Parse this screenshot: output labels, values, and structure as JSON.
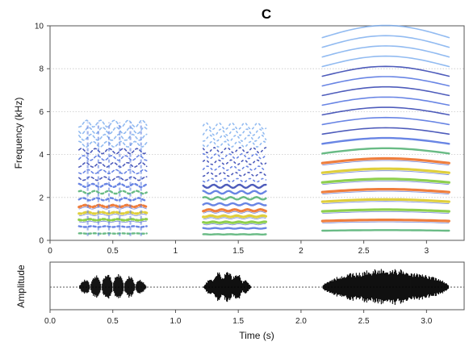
{
  "chart_data": [
    {
      "type": "heatmap",
      "title": "C",
      "xlabel": "",
      "ylabel": "Frequency (kHz)",
      "xlim": [
        0,
        3.3
      ],
      "ylim": [
        0,
        10
      ],
      "x_ticks": [
        0,
        0.5,
        1,
        1.5,
        2,
        2.5,
        3
      ],
      "x_tick_labels": [
        "0",
        "0.5",
        "1",
        "1.5",
        "2",
        "2.5",
        "3"
      ],
      "y_ticks": [
        0,
        2,
        4,
        6,
        8,
        10
      ],
      "y_tick_labels": [
        "0",
        "2",
        "4",
        "6",
        "8",
        "10"
      ],
      "grid": "horizontal dotted",
      "segments": [
        {
          "start": 0.23,
          "end": 0.77,
          "harmonic_spacing_khz": 0.32,
          "max_freq_khz": 5.5,
          "strong_band_khz": [
            0.9,
            1.6
          ]
        },
        {
          "start": 1.22,
          "end": 1.72,
          "harmonic_spacing_khz": 0.28,
          "max_freq_khz": 5.4,
          "strong_band_khz": [
            0.8,
            1.6
          ]
        },
        {
          "start": 2.17,
          "end": 3.18,
          "harmonic_spacing_khz": 0.45,
          "max_freq_khz": 9.8,
          "strong_band_khz": [
            0.5,
            4.0
          ]
        }
      ],
      "colors": [
        "#2233aa",
        "#4466dd",
        "#77aaee",
        "#44aa66",
        "#88cc44",
        "#ddcc33",
        "#ee7733"
      ]
    },
    {
      "type": "line",
      "title": "",
      "xlabel": "Time (s)",
      "ylabel": "Amplitude",
      "xlim": [
        0,
        3.3
      ],
      "x_ticks": [
        0,
        0.5,
        1,
        1.5,
        2,
        2.5,
        3
      ],
      "x_tick_labels": [
        "0.0",
        "0.5",
        "1.0",
        "1.5",
        "2.0",
        "2.5",
        "3.0"
      ],
      "baseline": "dashed",
      "waveform_segments": [
        {
          "start": 0.23,
          "end": 0.77,
          "pulses": 6,
          "peak_amplitude": 0.65
        },
        {
          "start": 1.22,
          "end": 1.72,
          "pulses": 0,
          "peak_amplitude": 0.8
        },
        {
          "start": 2.17,
          "end": 3.18,
          "pulses": 0,
          "peak_amplitude": 0.85
        }
      ]
    }
  ]
}
